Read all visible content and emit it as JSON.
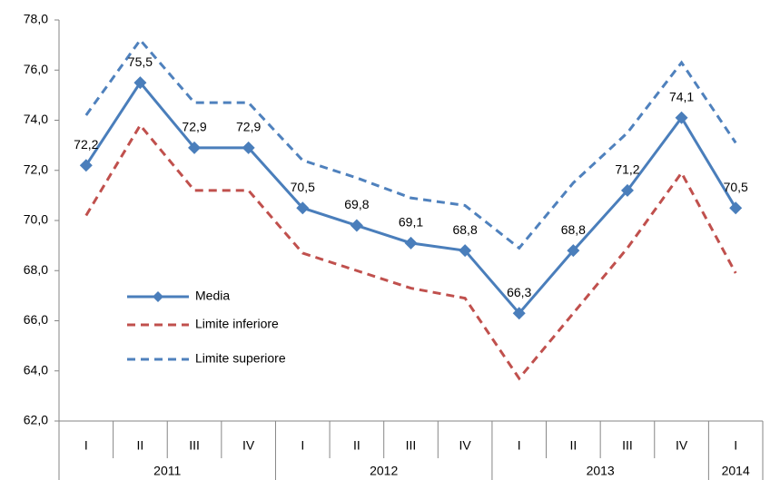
{
  "chart_data": {
    "type": "line",
    "categories": [
      "I",
      "II",
      "III",
      "IV",
      "I",
      "II",
      "III",
      "IV",
      "I",
      "II",
      "III",
      "IV",
      "I"
    ],
    "groups": [
      {
        "name": "2011",
        "count": 4
      },
      {
        "name": "2012",
        "count": 4
      },
      {
        "name": "2013",
        "count": 4
      },
      {
        "name": "2014",
        "count": 1
      }
    ],
    "series": [
      {
        "name": "Media",
        "color": "#4a7ebb",
        "dashed": false,
        "markers": true,
        "values": [
          72.2,
          75.5,
          72.9,
          72.9,
          70.5,
          69.8,
          69.1,
          68.8,
          66.3,
          68.8,
          71.2,
          74.1,
          70.5
        ],
        "value_labels": [
          "72,2",
          "75,5",
          "72,9",
          "72,9",
          "70,5",
          "69,8",
          "69,1",
          "68,8",
          "66,3",
          "68,8",
          "71,2",
          "74,1",
          "70,5"
        ]
      },
      {
        "name": "Limite inferiore",
        "color": "#c0504d",
        "dashed": true,
        "markers": false,
        "values": [
          70.2,
          73.8,
          71.2,
          71.2,
          68.7,
          68.0,
          67.3,
          66.9,
          63.7,
          66.3,
          68.9,
          71.9,
          67.9
        ]
      },
      {
        "name": "Limite superiore",
        "color": "#4f81bd",
        "dashed": true,
        "markers": false,
        "values": [
          74.2,
          77.2,
          74.7,
          74.7,
          72.4,
          71.7,
          70.9,
          70.6,
          68.9,
          71.5,
          73.5,
          76.3,
          73.1
        ]
      }
    ],
    "ylim": [
      62,
      78
    ],
    "yticks": [
      {
        "value": 62,
        "label": "62,0"
      },
      {
        "value": 64,
        "label": "64,0"
      },
      {
        "value": 66,
        "label": "66,0"
      },
      {
        "value": 68,
        "label": "68,0"
      },
      {
        "value": 70,
        "label": "70,0"
      },
      {
        "value": 72,
        "label": "72,0"
      },
      {
        "value": 74,
        "label": "74,0"
      },
      {
        "value": 76,
        "label": "76,0"
      },
      {
        "value": 78,
        "label": "78,0"
      }
    ],
    "grid": false,
    "legend": "left"
  }
}
